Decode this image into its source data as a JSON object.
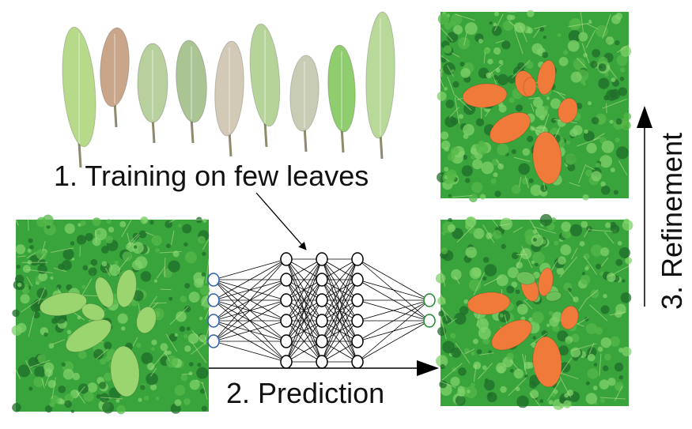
{
  "labels": {
    "training": "1. Training on few leaves",
    "prediction": "2. Prediction",
    "refinement": "3. Refinement"
  },
  "network": {
    "layers": [
      4,
      6,
      6,
      6,
      2
    ],
    "input_color": "#2a5fb0",
    "hidden_color": "#000000",
    "output_color": "#1f8a2e"
  },
  "colors": {
    "grass_dark": "#1f6e28",
    "grass_mid": "#3aa43c",
    "grass_light": "#7fd26a",
    "leaf_green": "#8cc96a",
    "leaf_dry": "#c8b894",
    "leaf_highlight": "#f07a3a"
  },
  "leaves_strip_count": 9
}
